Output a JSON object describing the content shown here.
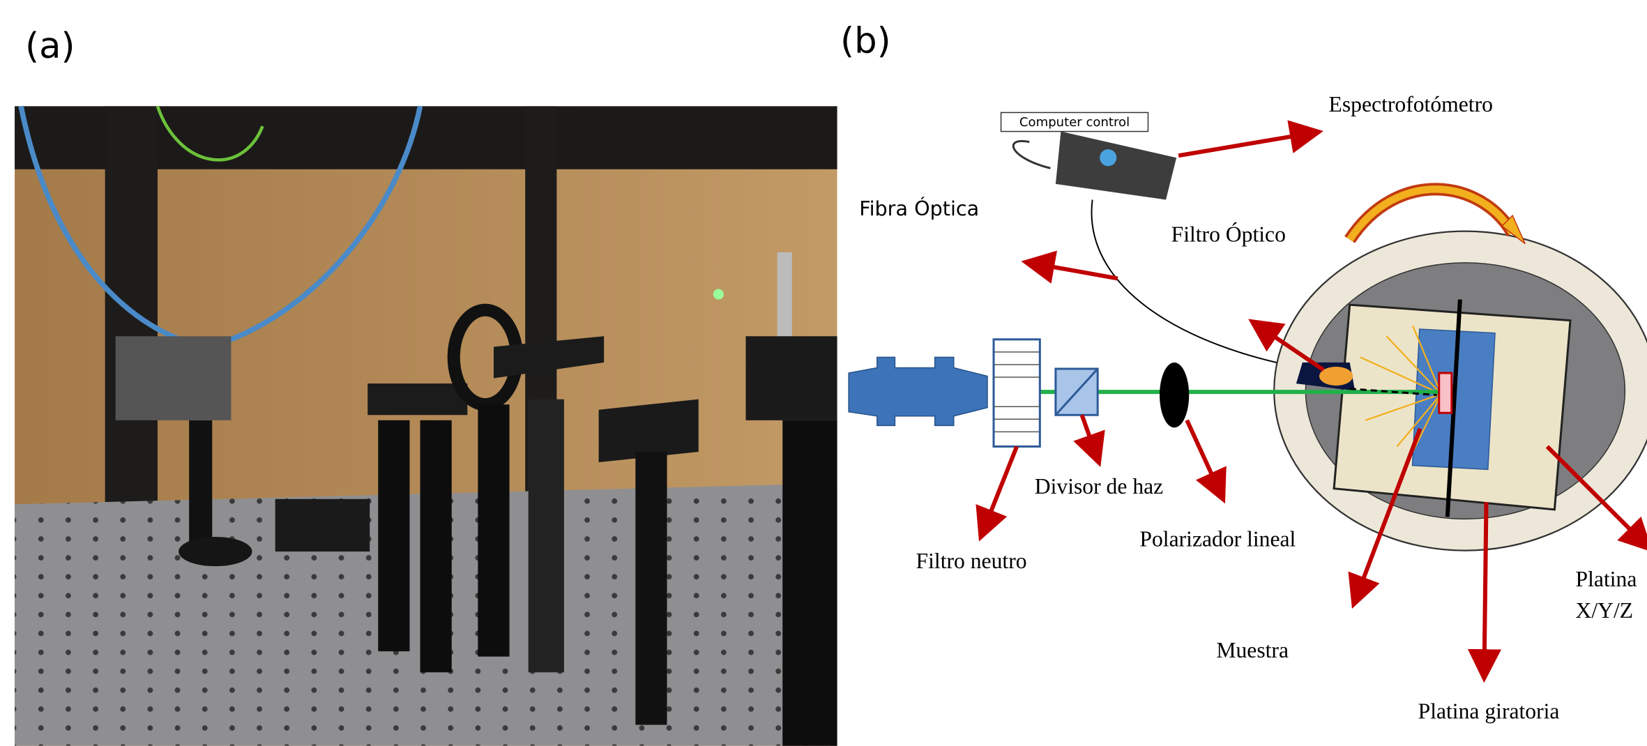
{
  "panels": {
    "a": "(a)",
    "b": "(b)"
  },
  "labels": {
    "computer_control": "Computer control",
    "spectrometer": "Espectrofotómetro",
    "fiber": "Fibra Óptica",
    "optical_filter": "Filtro Óptico",
    "beam_splitter": "Divisor de haz",
    "neutral_filter": "Filtro neutro",
    "polarizer": "Polarizador lineal",
    "sample": "Muestra",
    "rotary_stage": "Platina giratoria",
    "xyz_stage_1": "Platina",
    "xyz_stage_2": "X/Y/Z"
  }
}
